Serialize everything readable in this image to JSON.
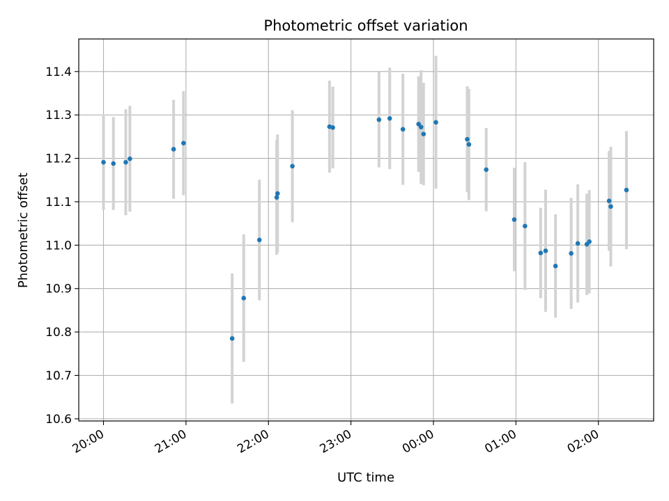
{
  "chart_data": {
    "type": "scatter",
    "title": "Photometric offset variation",
    "xlabel": "UTC time",
    "ylabel": "Photometric offset",
    "x_unit": "UTC time (hours after 20:00)",
    "xlim": [
      -0.3,
      6.67
    ],
    "ylim": [
      10.595,
      11.475
    ],
    "grid": true,
    "x_ticks": [
      {
        "value": 0,
        "label": "20:00"
      },
      {
        "value": 1,
        "label": "21:00"
      },
      {
        "value": 2,
        "label": "22:00"
      },
      {
        "value": 3,
        "label": "23:00"
      },
      {
        "value": 4,
        "label": "00:00"
      },
      {
        "value": 5,
        "label": "01:00"
      },
      {
        "value": 6,
        "label": "02:00"
      }
    ],
    "y_ticks": [
      {
        "value": 10.6,
        "label": "10.6"
      },
      {
        "value": 10.7,
        "label": "10.7"
      },
      {
        "value": 10.8,
        "label": "10.8"
      },
      {
        "value": 10.9,
        "label": "10.9"
      },
      {
        "value": 11.0,
        "label": "11.0"
      },
      {
        "value": 11.1,
        "label": "11.1"
      },
      {
        "value": 11.2,
        "label": "11.2"
      },
      {
        "value": 11.3,
        "label": "11.3"
      },
      {
        "value": 11.4,
        "label": "11.4"
      }
    ],
    "marker_color": "#1f77b4",
    "errorbar_color": "#d3d3d3",
    "points": [
      {
        "x": 0.0,
        "y": 11.191,
        "err": 0.11
      },
      {
        "x": 0.12,
        "y": 11.188,
        "err": 0.107
      },
      {
        "x": 0.27,
        "y": 11.191,
        "err": 0.122
      },
      {
        "x": 0.32,
        "y": 11.199,
        "err": 0.122
      },
      {
        "x": 0.85,
        "y": 11.221,
        "err": 0.114
      },
      {
        "x": 0.97,
        "y": 11.235,
        "err": 0.12
      },
      {
        "x": 1.56,
        "y": 10.785,
        "err": 0.15
      },
      {
        "x": 1.7,
        "y": 10.878,
        "err": 0.147
      },
      {
        "x": 1.89,
        "y": 11.012,
        "err": 0.139
      },
      {
        "x": 2.1,
        "y": 11.11,
        "err": 0.132
      },
      {
        "x": 2.11,
        "y": 11.119,
        "err": 0.136
      },
      {
        "x": 2.29,
        "y": 11.182,
        "err": 0.129
      },
      {
        "x": 2.74,
        "y": 11.273,
        "err": 0.106
      },
      {
        "x": 2.78,
        "y": 11.271,
        "err": 0.094
      },
      {
        "x": 3.34,
        "y": 11.289,
        "err": 0.11
      },
      {
        "x": 3.47,
        "y": 11.292,
        "err": 0.117
      },
      {
        "x": 3.63,
        "y": 11.267,
        "err": 0.128
      },
      {
        "x": 3.82,
        "y": 11.279,
        "err": 0.11
      },
      {
        "x": 3.85,
        "y": 11.272,
        "err": 0.131
      },
      {
        "x": 3.88,
        "y": 11.256,
        "err": 0.118
      },
      {
        "x": 4.03,
        "y": 11.283,
        "err": 0.153
      },
      {
        "x": 4.41,
        "y": 11.244,
        "err": 0.122
      },
      {
        "x": 4.43,
        "y": 11.232,
        "err": 0.128
      },
      {
        "x": 4.64,
        "y": 11.174,
        "err": 0.096
      },
      {
        "x": 4.98,
        "y": 11.059,
        "err": 0.119
      },
      {
        "x": 5.11,
        "y": 11.044,
        "err": 0.147
      },
      {
        "x": 5.3,
        "y": 10.982,
        "err": 0.104
      },
      {
        "x": 5.36,
        "y": 10.987,
        "err": 0.141
      },
      {
        "x": 5.48,
        "y": 10.952,
        "err": 0.119
      },
      {
        "x": 5.67,
        "y": 10.981,
        "err": 0.128
      },
      {
        "x": 5.75,
        "y": 11.004,
        "err": 0.136
      },
      {
        "x": 5.86,
        "y": 11.002,
        "err": 0.117
      },
      {
        "x": 5.89,
        "y": 11.008,
        "err": 0.119
      },
      {
        "x": 6.13,
        "y": 11.102,
        "err": 0.115
      },
      {
        "x": 6.15,
        "y": 11.089,
        "err": 0.138
      },
      {
        "x": 6.34,
        "y": 11.127,
        "err": 0.136
      }
    ]
  }
}
